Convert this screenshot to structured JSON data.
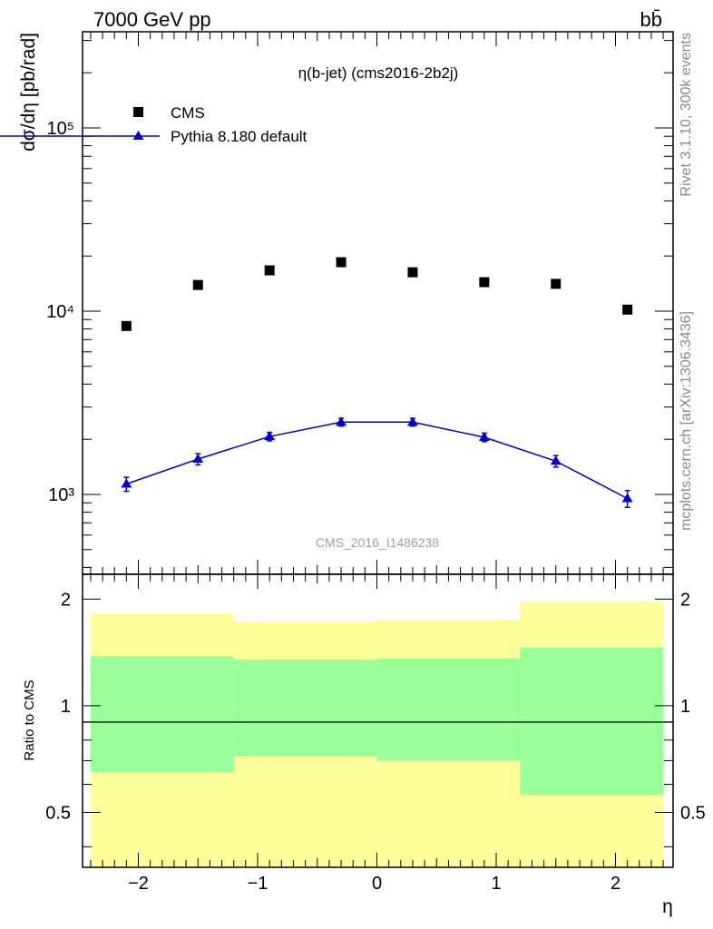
{
  "header": {
    "left": "7000 GeV pp",
    "right": "bb̄"
  },
  "side_labels": {
    "upper": "Rivet 3.1.10,  300k events",
    "lower": "mcplots.cern.ch [arXiv:1306.3436]"
  },
  "chart_data": [
    {
      "type": "scatter",
      "title": "η(b-jet) (cms2016-2b2j)",
      "xlabel": "",
      "ylabel": "dσ/dη [pb/rad]",
      "yscale": "log",
      "xlim": [
        -2.4,
        2.4
      ],
      "ylim": [
        350,
        330000
      ],
      "y_tick_labels": [
        "10³",
        "10⁴",
        "10⁵"
      ],
      "legend_placement": "top-left",
      "watermark": "CMS_2016_I1486238",
      "colors": {
        "data": "#000000",
        "mc": "#0000cc"
      },
      "x": [
        -2.1,
        -1.5,
        -0.9,
        -0.3,
        0.3,
        0.9,
        1.5,
        2.1
      ],
      "series": [
        {
          "name": "CMS",
          "marker": "square",
          "values": [
            8300,
            13900,
            16700,
            18500,
            16300,
            14400,
            14100,
            10200
          ]
        },
        {
          "name": "Pythia 8.180 default",
          "marker": "triangle",
          "values": [
            1140,
            1560,
            2070,
            2480,
            2480,
            2050,
            1520,
            950
          ],
          "errors": [
            100,
            110,
            110,
            120,
            120,
            110,
            110,
            100
          ]
        }
      ]
    },
    {
      "type": "area",
      "xlabel": "η",
      "ylabel": "Ratio to CMS",
      "xlim": [
        -2.5,
        2.5
      ],
      "ylim": [
        0.35,
        2.35
      ],
      "x_tick_labels": [
        "−2",
        "−1",
        "0",
        "1",
        "2"
      ],
      "y_tick_labels": [
        "0.5",
        "1",
        "2"
      ],
      "colors": {
        "outer": "#ffff99",
        "inner": "#99ff99",
        "line": "#000000"
      },
      "bands": [
        {
          "x": [
            -2.4,
            -1.2
          ],
          "inner": [
            0.65,
            1.38
          ],
          "outer": [
            0.0,
            1.82
          ]
        },
        {
          "x": [
            -1.2,
            0.0
          ],
          "inner": [
            0.72,
            1.35
          ],
          "outer": [
            0.0,
            1.73
          ]
        },
        {
          "x": [
            0.0,
            1.2
          ],
          "inner": [
            0.7,
            1.36
          ],
          "outer": [
            0.0,
            1.75
          ]
        },
        {
          "x": [
            1.2,
            2.4
          ],
          "inner": [
            0.56,
            1.46
          ],
          "outer": [
            0.0,
            1.97
          ]
        }
      ]
    }
  ]
}
